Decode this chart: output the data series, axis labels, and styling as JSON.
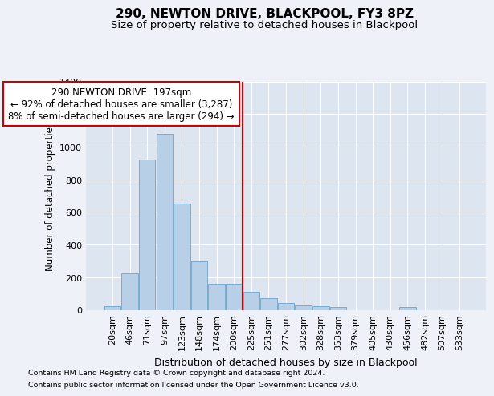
{
  "title1": "290, NEWTON DRIVE, BLACKPOOL, FY3 8PZ",
  "title2": "Size of property relative to detached houses in Blackpool",
  "xlabel": "Distribution of detached houses by size in Blackpool",
  "ylabel": "Number of detached properties",
  "footnote1": "Contains HM Land Registry data © Crown copyright and database right 2024.",
  "footnote2": "Contains public sector information licensed under the Open Government Licence v3.0.",
  "categories": [
    "20sqm",
    "46sqm",
    "71sqm",
    "97sqm",
    "123sqm",
    "148sqm",
    "174sqm",
    "200sqm",
    "225sqm",
    "251sqm",
    "277sqm",
    "302sqm",
    "328sqm",
    "353sqm",
    "379sqm",
    "405sqm",
    "430sqm",
    "456sqm",
    "482sqm",
    "507sqm",
    "533sqm"
  ],
  "values": [
    20,
    225,
    920,
    1080,
    650,
    295,
    160,
    160,
    110,
    70,
    40,
    25,
    20,
    15,
    0,
    0,
    0,
    15,
    0,
    0,
    0
  ],
  "bar_color": "#b8cfe8",
  "bar_edge_color": "#7aaad0",
  "vline_pos": 7.5,
  "vline_color": "#cc0000",
  "annotation_line1": "290 NEWTON DRIVE: 197sqm",
  "annotation_line2": "← 92% of detached houses are smaller (3,287)",
  "annotation_line3": "8% of semi-detached houses are larger (294) →",
  "annotation_box_color": "#ffffff",
  "annotation_box_edge": "#cc0000",
  "ylim": [
    0,
    1400
  ],
  "yticks": [
    0,
    200,
    400,
    600,
    800,
    1000,
    1200,
    1400
  ],
  "bg_color": "#eef1f8",
  "plot_bg_color": "#dce5f0",
  "grid_color": "#ffffff",
  "title1_fontsize": 11,
  "title2_fontsize": 9.5,
  "xlabel_fontsize": 9,
  "ylabel_fontsize": 8.5,
  "tick_fontsize": 8,
  "annot_fontsize": 8.5,
  "footnote_fontsize": 6.8
}
